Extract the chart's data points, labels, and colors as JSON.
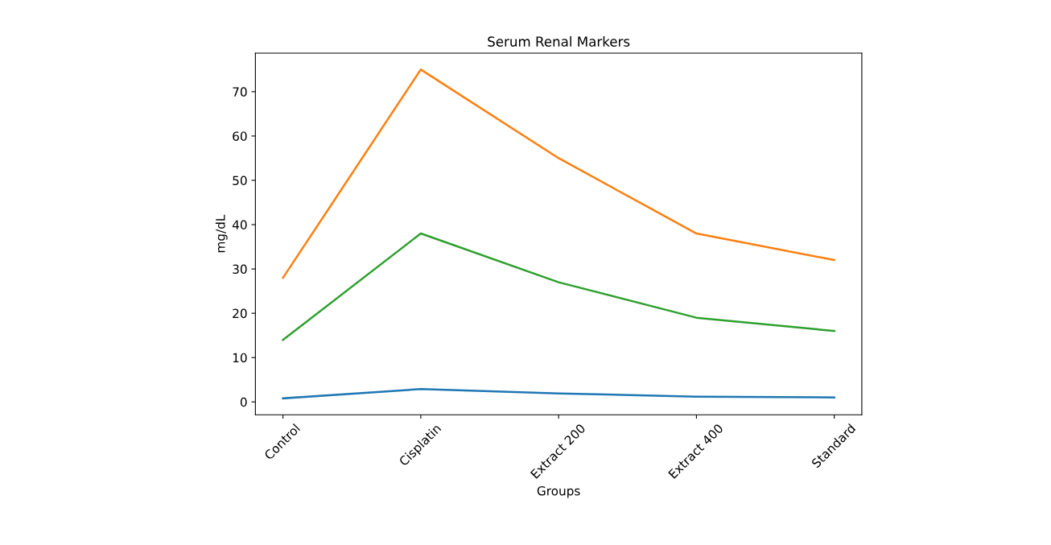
{
  "chart_data": {
    "type": "line",
    "title": "Serum Renal Markers",
    "xlabel": "Groups",
    "ylabel": "mg/dL",
    "categories": [
      "Control",
      "Cisplatin",
      "Extract 200",
      "Extract 400",
      "Standard"
    ],
    "series": [
      {
        "color": "#1f77b4",
        "values": [
          0.8,
          2.9,
          1.9,
          1.2,
          1.0
        ]
      },
      {
        "color": "#ff7f0e",
        "values": [
          28,
          75,
          55,
          38,
          32
        ]
      },
      {
        "color": "#2ca02c",
        "values": [
          14,
          38,
          27,
          19,
          16
        ]
      }
    ],
    "ylim": [
      -2.9,
      78.7
    ],
    "yticks": [
      0,
      10,
      20,
      30,
      40,
      50,
      60,
      70
    ],
    "grid": false,
    "legend": false
  }
}
